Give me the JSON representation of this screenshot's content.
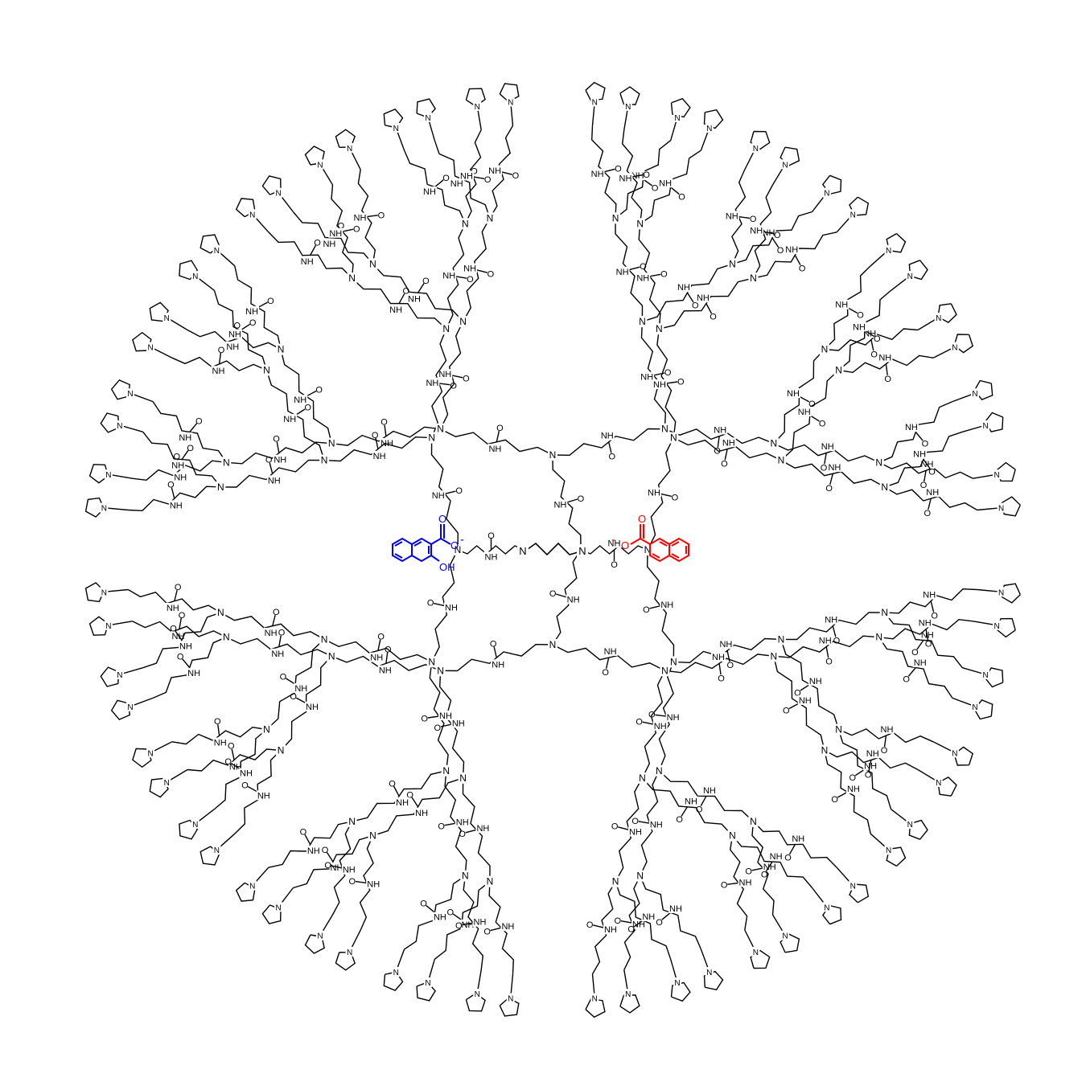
{
  "figure": {
    "core": {
      "atom_labels": [
        "N",
        "N"
      ],
      "bond_color": "#000000"
    },
    "dendron_labels": {
      "amine": "N",
      "amide_nh": "NH",
      "carbonyl_o": "O",
      "ring_n": "N",
      "ring_o": "O",
      "ester_o": "O"
    },
    "generations": 5,
    "surface_groups": 128,
    "guests": [
      {
        "name": "3-hydroxy-2-naphthoate",
        "color": "#0000ff",
        "labels": {
          "carbonyl_o": "O",
          "anion_o": "O",
          "charge": "-",
          "hydroxyl": "OH"
        }
      },
      {
        "name": "2-naphthoate",
        "color": "#ff0000",
        "labels": {
          "carbonyl_o": "O",
          "anion_o": "O",
          "charge": "-"
        }
      }
    ]
  }
}
